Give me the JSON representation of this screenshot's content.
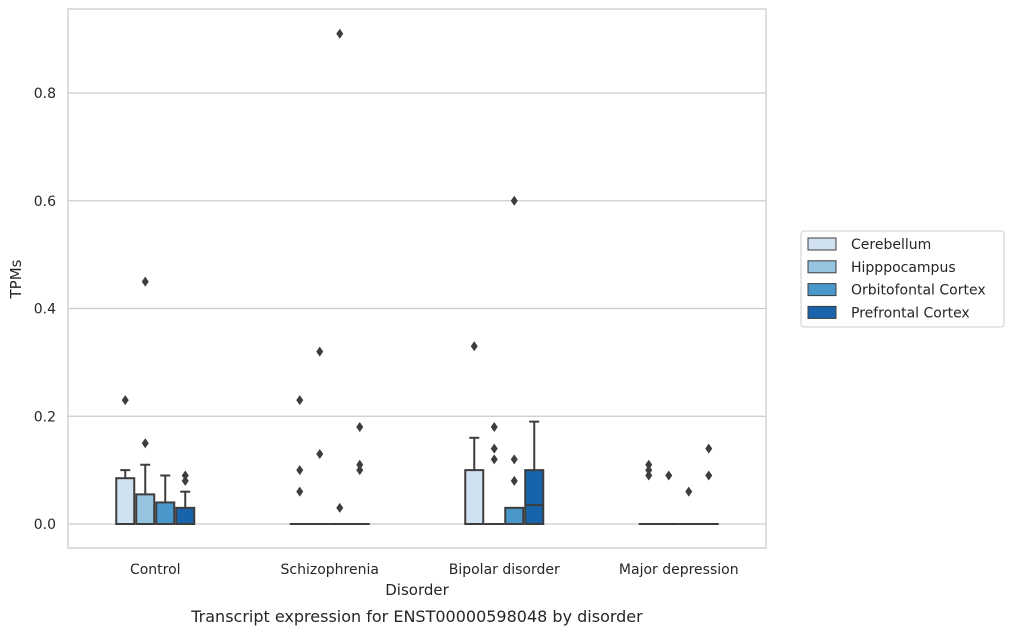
{
  "caption": "Transcript expression for ENST00000598048 by disorder",
  "chart_data": {
    "type": "box",
    "title": "",
    "xlabel": "Disorder",
    "ylabel": "TPMs",
    "ylim": [
      -0.045,
      0.96
    ],
    "yticks": [
      0.0,
      0.2,
      0.4,
      0.6,
      0.8
    ],
    "ytick_labels": [
      "0.0",
      "0.2",
      "0.4",
      "0.6",
      "0.8"
    ],
    "grid": "horizontal",
    "legend_position": "right",
    "categories": [
      "Control",
      "Schizophrenia",
      "Bipolar disorder",
      "Major depression"
    ],
    "series": [
      {
        "name": "Cerebellum",
        "color": "#d0e1f2",
        "boxes": [
          {
            "q1": 0.0,
            "median": 0.0,
            "q3": 0.085,
            "whislo": 0.0,
            "whishi": 0.1,
            "fliers": [
              0.23
            ]
          },
          {
            "q1": 0.0,
            "median": 0.0,
            "q3": 0.0,
            "whislo": 0.0,
            "whishi": 0.0,
            "fliers": [
              0.06,
              0.1,
              0.23
            ]
          },
          {
            "q1": 0.0,
            "median": 0.0,
            "q3": 0.1,
            "whislo": 0.0,
            "whishi": 0.16,
            "fliers": [
              0.33
            ]
          },
          {
            "q1": 0.0,
            "median": 0.0,
            "q3": 0.0,
            "whislo": 0.0,
            "whishi": 0.0,
            "fliers": [
              0.09,
              0.1,
              0.11
            ]
          }
        ]
      },
      {
        "name": "Hipppocampus",
        "color": "#94c4df",
        "boxes": [
          {
            "q1": 0.0,
            "median": 0.0,
            "q3": 0.055,
            "whislo": 0.0,
            "whishi": 0.11,
            "fliers": [
              0.15,
              0.45
            ]
          },
          {
            "q1": 0.0,
            "median": 0.0,
            "q3": 0.0,
            "whislo": 0.0,
            "whishi": 0.0,
            "fliers": [
              0.13,
              0.32
            ]
          },
          {
            "q1": 0.0,
            "median": 0.0,
            "q3": 0.0,
            "whislo": 0.0,
            "whishi": 0.0,
            "fliers": [
              0.12,
              0.14,
              0.18
            ]
          },
          {
            "q1": 0.0,
            "median": 0.0,
            "q3": 0.0,
            "whislo": 0.0,
            "whishi": 0.0,
            "fliers": [
              0.09
            ]
          }
        ]
      },
      {
        "name": "Orbitofontal Cortex",
        "color": "#4a98c9",
        "boxes": [
          {
            "q1": 0.0,
            "median": 0.0,
            "q3": 0.04,
            "whislo": 0.0,
            "whishi": 0.09,
            "fliers": []
          },
          {
            "q1": 0.0,
            "median": 0.0,
            "q3": 0.0,
            "whislo": 0.0,
            "whishi": 0.0,
            "fliers": [
              0.03,
              0.91
            ]
          },
          {
            "q1": 0.0,
            "median": 0.0,
            "q3": 0.03,
            "whislo": 0.0,
            "whishi": 0.03,
            "fliers": [
              0.08,
              0.12,
              0.6
            ]
          },
          {
            "q1": 0.0,
            "median": 0.0,
            "q3": 0.0,
            "whislo": 0.0,
            "whishi": 0.0,
            "fliers": [
              0.06
            ]
          }
        ]
      },
      {
        "name": "Prefrontal Cortex",
        "color": "#1764ab",
        "boxes": [
          {
            "q1": 0.0,
            "median": 0.0,
            "q3": 0.03,
            "whislo": 0.0,
            "whishi": 0.06,
            "fliers": [
              0.08,
              0.09
            ]
          },
          {
            "q1": 0.0,
            "median": 0.0,
            "q3": 0.0,
            "whislo": 0.0,
            "whishi": 0.0,
            "fliers": [
              0.1,
              0.11,
              0.18
            ]
          },
          {
            "q1": 0.0,
            "median": 0.035,
            "q3": 0.1,
            "whislo": 0.0,
            "whishi": 0.19,
            "fliers": []
          },
          {
            "q1": 0.0,
            "median": 0.0,
            "q3": 0.0,
            "whislo": 0.0,
            "whishi": 0.0,
            "fliers": [
              0.09,
              0.14
            ]
          }
        ]
      }
    ]
  }
}
